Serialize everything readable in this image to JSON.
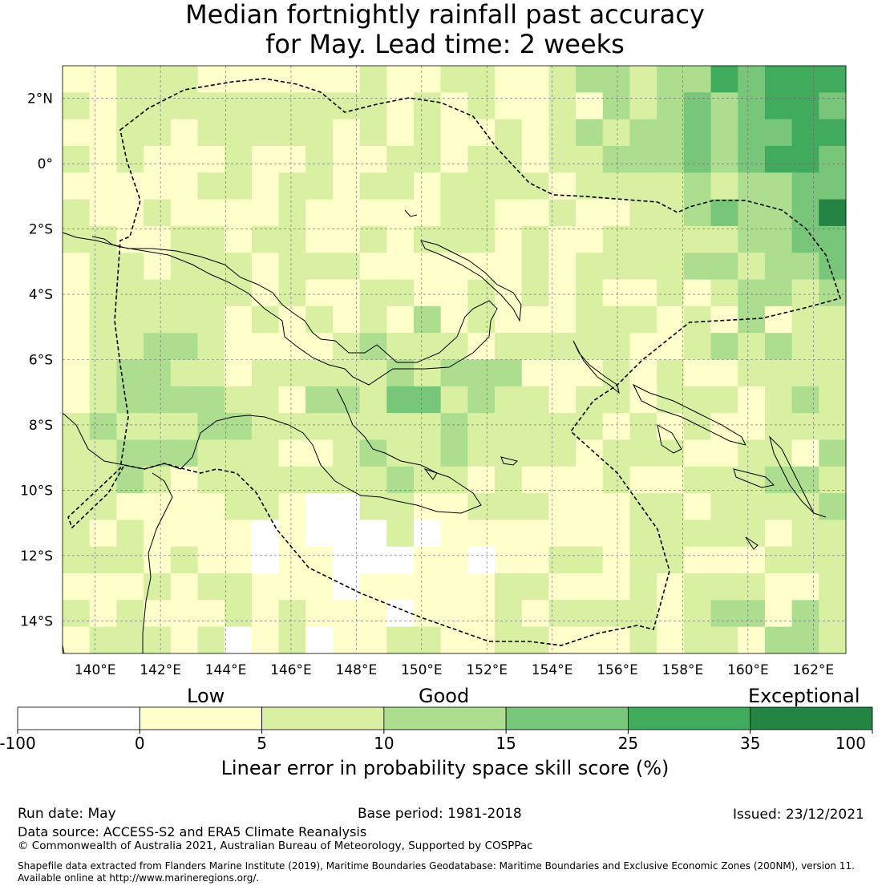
{
  "title": {
    "line1": "Median fortnightly rainfall past accuracy",
    "line2": "for May. Lead time: 2 weeks"
  },
  "map": {
    "lon_range": [
      139,
      163
    ],
    "lat_range": [
      -15,
      3
    ],
    "lon_ticks": [
      "140°E",
      "142°E",
      "144°E",
      "146°E",
      "148°E",
      "150°E",
      "152°E",
      "154°E",
      "156°E",
      "158°E",
      "160°E",
      "162°E"
    ],
    "lat_ticks": [
      "2°N",
      "0°",
      "2°S",
      "4°S",
      "6°S",
      "8°S",
      "10°S",
      "12°S",
      "14°S"
    ],
    "grid": true
  },
  "colorbar": {
    "categories": [
      "Low",
      "Good",
      "Exceptional"
    ],
    "ticks": [
      "-100",
      "0",
      "5",
      "10",
      "15",
      "25",
      "35",
      "100"
    ],
    "colors": [
      "#ffffff",
      "#ffffcc",
      "#d9f0a3",
      "#addd8e",
      "#78c679",
      "#41ab5d",
      "#238443"
    ],
    "label": "Linear error in probability space skill score (%)"
  },
  "footer": {
    "run_date": "Run date: May",
    "base_period": "Base period: 1981-2018",
    "issued": "Issued: 23/12/2021",
    "data_source": "Data source: ACCESS-S2 and ERA5 Climate Reanalysis",
    "copyright": "© Commonwealth of Australia 2021, Australian Bureau of Meteorology, Supported by COSPPac",
    "shapefile_line1": "Shapefile data extracted from Flanders Marine Institute (2019), Maritime Boundaries Geodatabase: Maritime Boundaries and Exclusive Economic Zones (200NM), version 11.",
    "shapefile_line2": "Available online at http://www.marineregions.org/."
  }
}
